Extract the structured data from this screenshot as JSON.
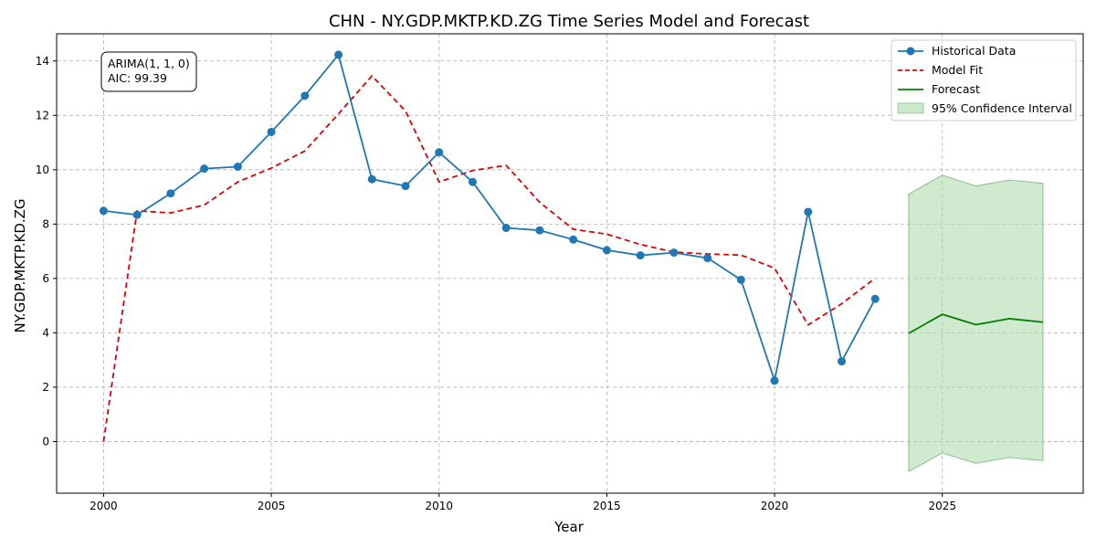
{
  "chart_data": {
    "type": "line",
    "title": "CHN - NY.GDP.MKTP.KD.ZG Time Series Model and Forecast",
    "xlabel": "Year",
    "ylabel": "NY.GDP.MKTP.KD.ZG",
    "xlim": [
      1998.6,
      2029.2
    ],
    "ylim": [
      -1.9,
      15.0
    ],
    "xticks": [
      2000,
      2005,
      2010,
      2015,
      2020,
      2025
    ],
    "yticks": [
      0,
      2,
      4,
      6,
      8,
      10,
      12,
      14
    ],
    "grid": true,
    "legend_position": "top-right",
    "annotation": {
      "lines": [
        "ARIMA(1, 1, 0)",
        "AIC: 99.39"
      ]
    },
    "series": [
      {
        "name": "Historical Data",
        "style": "line-marker",
        "color": "#1f77b4",
        "x": [
          2000,
          2001,
          2002,
          2003,
          2004,
          2005,
          2006,
          2007,
          2008,
          2009,
          2010,
          2011,
          2012,
          2013,
          2014,
          2015,
          2016,
          2017,
          2018,
          2019,
          2020,
          2021,
          2022,
          2023
        ],
        "values": [
          8.49,
          8.34,
          9.13,
          10.04,
          10.11,
          11.39,
          12.72,
          14.23,
          9.65,
          9.4,
          10.64,
          9.55,
          7.86,
          7.77,
          7.43,
          7.04,
          6.85,
          6.95,
          6.75,
          5.95,
          2.24,
          8.45,
          2.95,
          5.25
        ]
      },
      {
        "name": "Model Fit",
        "style": "dashed",
        "color": "#e00000",
        "x": [
          2000,
          2001,
          2002,
          2003,
          2004,
          2005,
          2006,
          2007,
          2008,
          2009,
          2010,
          2011,
          2012,
          2013,
          2014,
          2015,
          2016,
          2017,
          2018,
          2019,
          2020,
          2021,
          2022,
          2023
        ],
        "values": [
          0.0,
          8.49,
          8.41,
          8.7,
          9.55,
          10.06,
          10.69,
          12.05,
          13.45,
          12.16,
          9.55,
          9.97,
          10.16,
          8.8,
          7.81,
          7.63,
          7.25,
          6.97,
          6.9,
          6.86,
          6.38,
          4.29,
          5.07,
          6.01
        ]
      },
      {
        "name": "Forecast",
        "style": "line",
        "color": "#008000",
        "x": [
          2024,
          2025,
          2026,
          2027,
          2028
        ],
        "values": [
          3.98,
          4.68,
          4.3,
          4.52,
          4.39
        ]
      }
    ],
    "confidence_interval": {
      "name": "95% Confidence Interval",
      "color": "#a8d8a8",
      "x": [
        2024,
        2025,
        2026,
        2027,
        2028
      ],
      "lower": [
        -1.1,
        -0.42,
        -0.8,
        -0.58,
        -0.7
      ],
      "upper": [
        9.1,
        9.8,
        9.4,
        9.62,
        9.5
      ]
    }
  }
}
